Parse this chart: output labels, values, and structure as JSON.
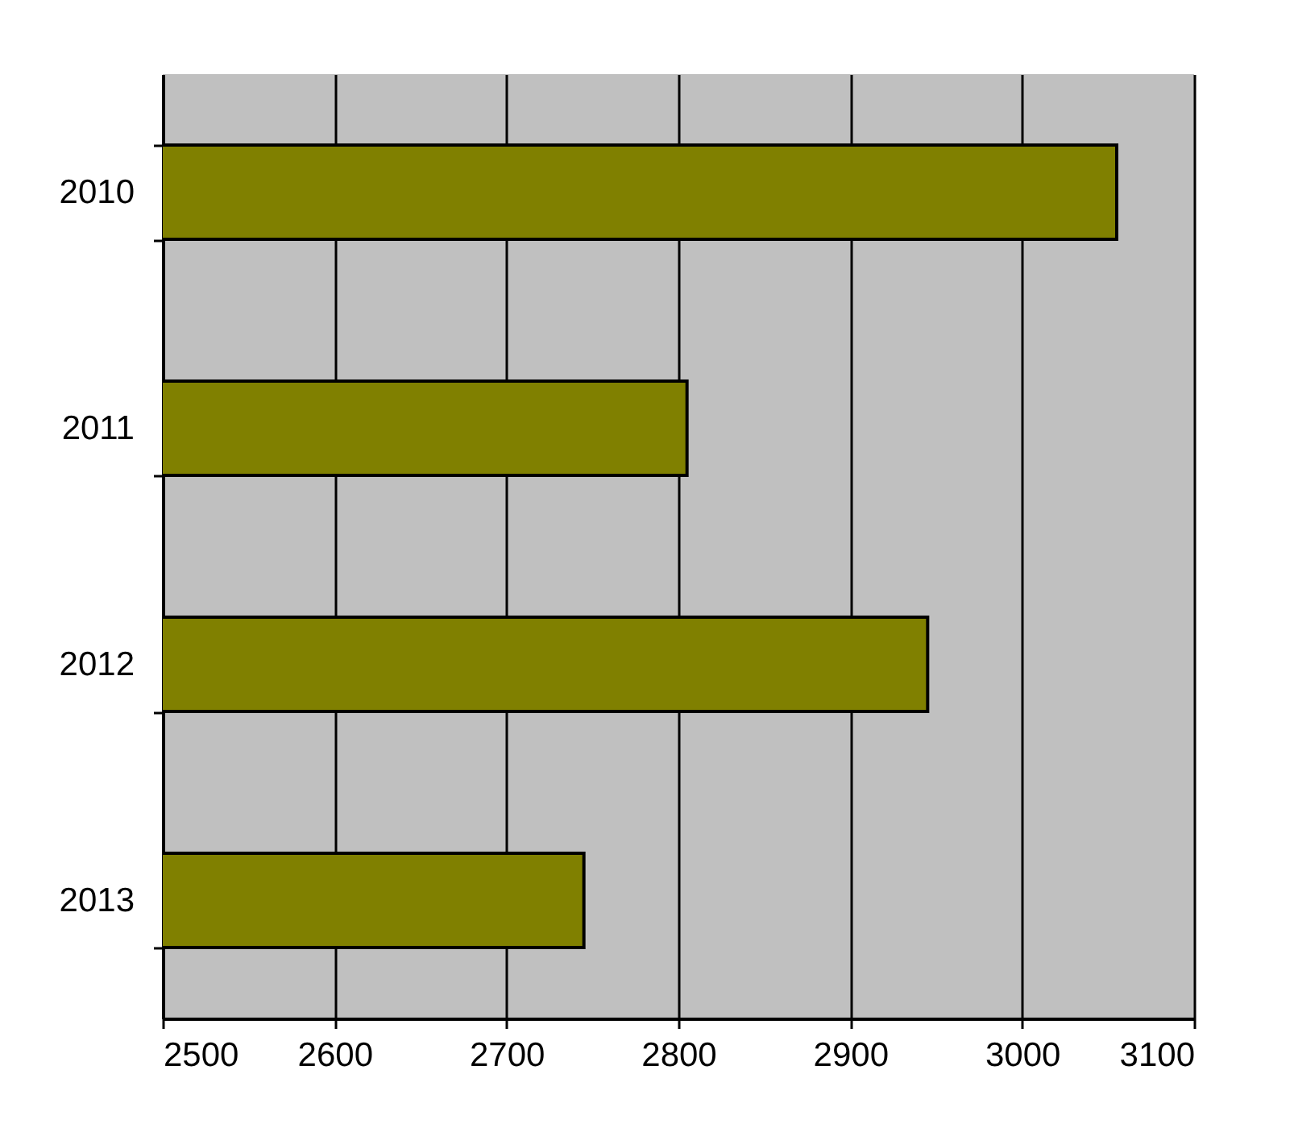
{
  "chart_data": {
    "type": "bar",
    "orientation": "horizontal",
    "categories": [
      "2010",
      "2011",
      "2012",
      "2013"
    ],
    "values": [
      3055,
      2805,
      2945,
      2745
    ],
    "color": "#808000",
    "xlim": [
      2500,
      3100
    ],
    "xticks": [
      2500,
      2600,
      2700,
      2800,
      2900,
      3000,
      3100
    ],
    "grid": "x"
  }
}
